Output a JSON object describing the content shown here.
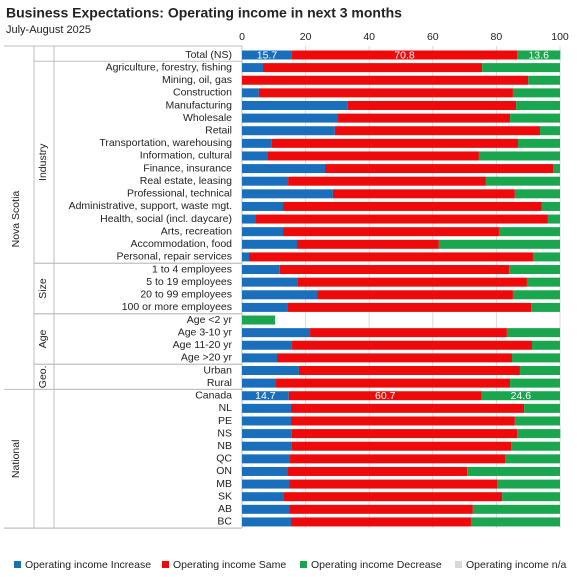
{
  "chart_data": {
    "type": "stacked-bar-horizontal",
    "title": "Business Expectations: Operating income in next 3 months",
    "subtitle": "July-August 2025",
    "categories": [
      "Total (NS)",
      "Agriculture, forestry, fishing",
      "Mining, oil, gas",
      "Construction",
      "Manufacturing",
      "Wholesale",
      "Retail",
      "Transportation, warehousing",
      "Information, cultural",
      "Finance, insurance",
      "Real estate, leasing",
      "Professional, technical",
      "Administrative, support, waste mgt.",
      "Health, social (incl. daycare)",
      "Arts, recreation",
      "Accommodation, food",
      "Personal, repair services",
      "1 to 4 employees",
      "5 to 19 employees",
      "20 to 99 employees",
      "100 or more employees",
      "Age <2 yr",
      "Age 3-10 yr",
      "Age 11-20 yr",
      "Age >20 yr",
      "Urban",
      "Rural",
      "Canada",
      "NL",
      "PE",
      "NS",
      "NB",
      "QC",
      "ON",
      "MB",
      "SK",
      "AB",
      "BC"
    ],
    "outer_groups": [
      {
        "name": "Nova Scotia",
        "start": 0,
        "end": 26
      },
      {
        "name": "National",
        "start": 27,
        "end": 37
      }
    ],
    "inner_groups": [
      {
        "name": "Industry",
        "start": 1,
        "end": 16
      },
      {
        "name": "Size",
        "start": 17,
        "end": 20
      },
      {
        "name": "Age",
        "start": 21,
        "end": 24
      },
      {
        "name": "Geo.",
        "start": 25,
        "end": 26
      }
    ],
    "series": [
      {
        "name": "Operating income Increase",
        "color": "#1a6fbd",
        "values": [
          15.7,
          6.6,
          0,
          5.3,
          33.3,
          30.2,
          29.2,
          9.4,
          7.9,
          26.1,
          14.5,
          28.6,
          12.9,
          4.4,
          12.9,
          17.3,
          2.2,
          11.9,
          17.6,
          23.6,
          14.2,
          0,
          21.4,
          15.7,
          11,
          17.9,
          10.7,
          14.7,
          15.4,
          15.4,
          15.7,
          15.7,
          15.1,
          14.2,
          14.8,
          13.2,
          14.8,
          15.4
        ],
        "value_labels": [
          "15.7",
          null,
          null,
          null,
          null,
          null,
          null,
          null,
          null,
          null,
          null,
          null,
          null,
          null,
          null,
          null,
          null,
          null,
          null,
          null,
          null,
          null,
          null,
          null,
          null,
          null,
          null,
          "14.7",
          null,
          null,
          null,
          null,
          null,
          null,
          null,
          null,
          null,
          null
        ]
      },
      {
        "name": "Operating income Same",
        "color": "#ee0a0a",
        "values": [
          70.8,
          68.9,
          90,
          79.9,
          52.9,
          54.1,
          64.5,
          77.4,
          66.6,
          71.7,
          62.2,
          57.2,
          81.4,
          91.8,
          67.9,
          44.6,
          89.3,
          72.1,
          72,
          61.6,
          76.7,
          0,
          61.9,
          75.5,
          73.9,
          69.5,
          73.6,
          60.7,
          73.3,
          70.4,
          70.8,
          68.9,
          67.6,
          56.6,
          65.4,
          68.6,
          57.8,
          56.6
        ],
        "value_labels": [
          "70.8",
          null,
          null,
          null,
          null,
          null,
          null,
          null,
          null,
          null,
          null,
          null,
          null,
          null,
          null,
          null,
          null,
          null,
          null,
          null,
          null,
          null,
          null,
          null,
          null,
          null,
          null,
          "60.7",
          null,
          null,
          null,
          null,
          null,
          null,
          null,
          null,
          null,
          null
        ]
      },
      {
        "name": "Operating income Decrease",
        "color": "#1aa64e",
        "values": [
          13.6,
          24.5,
          10,
          14.8,
          13.8,
          15.7,
          6.3,
          13.2,
          25.5,
          2.2,
          23.3,
          14.2,
          5.7,
          3.8,
          19.2,
          38.1,
          8.5,
          16,
          10.4,
          14.8,
          9.1,
          10.4,
          16.7,
          8.8,
          15.1,
          12.6,
          15.7,
          24.6,
          11.3,
          14.2,
          13.6,
          15.4,
          17.3,
          29.2,
          19.8,
          18.2,
          27.4,
          28
        ],
        "value_labels": [
          "13.6",
          null,
          null,
          null,
          null,
          null,
          null,
          null,
          null,
          null,
          null,
          null,
          null,
          null,
          null,
          null,
          null,
          null,
          null,
          null,
          null,
          null,
          null,
          null,
          null,
          null,
          null,
          "24.6",
          null,
          null,
          null,
          null,
          null,
          null,
          null,
          null,
          null,
          null
        ]
      },
      {
        "name": "Operating income n/a",
        "color": "#d9d9d9",
        "values": [
          0,
          0,
          0,
          0,
          0,
          0,
          0,
          0,
          0,
          0,
          0,
          0,
          0,
          0,
          0,
          0,
          0,
          0,
          0,
          0,
          0,
          0,
          0,
          0,
          0,
          0,
          0,
          0,
          0,
          0,
          0,
          0,
          0,
          0,
          0,
          0,
          0,
          0
        ]
      }
    ],
    "xlim": [
      0,
      100
    ],
    "xticks": [
      0,
      20,
      40,
      60,
      80,
      100
    ],
    "grid": true,
    "legend": "bottom"
  }
}
